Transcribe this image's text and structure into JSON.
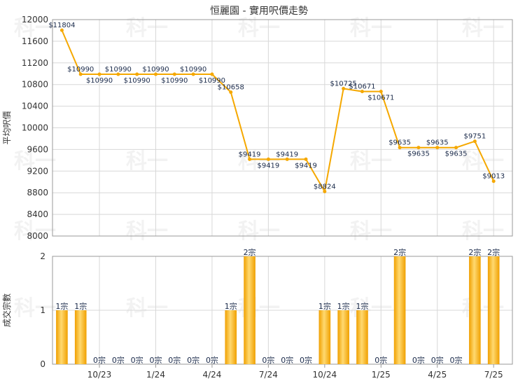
{
  "chart_data": [
    {
      "type": "line",
      "title": "恒麗園 - 實用呎價走勢",
      "ylabel": "平均呎價",
      "ylim": [
        8000,
        12000
      ],
      "yticks": [
        8000,
        8400,
        8800,
        9200,
        9600,
        10000,
        10400,
        10800,
        11200,
        11600,
        12000
      ],
      "grid": true,
      "color": "#f5a800",
      "points": [
        {
          "x": "2023-08",
          "y": 11804,
          "label": "$11804"
        },
        {
          "x": "2023-09",
          "y": 10990,
          "label": "$10990"
        },
        {
          "x": "2023-10",
          "y": 10990,
          "label": "$10990"
        },
        {
          "x": "2023-11",
          "y": 10990,
          "label": "$10990"
        },
        {
          "x": "2023-12",
          "y": 10990,
          "label": "$10990"
        },
        {
          "x": "2024-01",
          "y": 10990,
          "label": "$10990"
        },
        {
          "x": "2024-02",
          "y": 10990,
          "label": "$10990"
        },
        {
          "x": "2024-03",
          "y": 10990,
          "label": "$10990"
        },
        {
          "x": "2024-04",
          "y": 10990,
          "label": "$10990"
        },
        {
          "x": "2024-05",
          "y": 10658,
          "label": "$10658"
        },
        {
          "x": "2024-06",
          "y": 9419,
          "label": "$9419"
        },
        {
          "x": "2024-07",
          "y": 9419,
          "label": "$9419"
        },
        {
          "x": "2024-08",
          "y": 9419,
          "label": "$9419"
        },
        {
          "x": "2024-09",
          "y": 9419,
          "label": "$9419"
        },
        {
          "x": "2024-10",
          "y": 8824,
          "label": "$8824"
        },
        {
          "x": "2024-11",
          "y": 10725,
          "label": "$10725"
        },
        {
          "x": "2024-12",
          "y": 10671,
          "label": "$10671"
        },
        {
          "x": "2025-01",
          "y": 10671,
          "label": "$10671"
        },
        {
          "x": "2025-02",
          "y": 9635,
          "label": "$9635"
        },
        {
          "x": "2025-03",
          "y": 9635,
          "label": "$9635"
        },
        {
          "x": "2025-04",
          "y": 9635,
          "label": "$9635"
        },
        {
          "x": "2025-05",
          "y": 9635,
          "label": "$9635"
        },
        {
          "x": "2025-06",
          "y": 9751,
          "label": "$9751"
        },
        {
          "x": "2025-07",
          "y": 9013,
          "label": "$9013"
        }
      ]
    },
    {
      "type": "bar",
      "ylabel": "成交宗數",
      "ylim": [
        0,
        2
      ],
      "yticks": [
        0,
        1,
        2
      ],
      "grid": true,
      "color": "#f5a800",
      "categories": [
        "2023-08",
        "2023-09",
        "2023-10",
        "2023-11",
        "2023-12",
        "2024-01",
        "2024-02",
        "2024-03",
        "2024-04",
        "2024-05",
        "2024-06",
        "2024-07",
        "2024-08",
        "2024-09",
        "2024-10",
        "2024-11",
        "2024-12",
        "2025-01",
        "2025-02",
        "2025-03",
        "2025-04",
        "2025-05",
        "2025-06",
        "2025-07"
      ],
      "values": [
        1,
        1,
        0,
        0,
        0,
        0,
        0,
        0,
        0,
        1,
        2,
        0,
        0,
        0,
        1,
        1,
        1,
        0,
        2,
        0,
        0,
        0,
        2,
        2
      ],
      "value_labels": [
        "1宗",
        "1宗",
        "0宗",
        "0宗",
        "0宗",
        "0宗",
        "0宗",
        "0宗",
        "0宗",
        "1宗",
        "2宗",
        "0宗",
        "0宗",
        "0宗",
        "1宗",
        "1宗",
        "1宗",
        "0宗",
        "2宗",
        "0宗",
        "0宗",
        "0宗",
        "2宗",
        "2宗"
      ],
      "xtick_labels": [
        {
          "category": "2023-10",
          "label": "10/23"
        },
        {
          "category": "2024-01",
          "label": "1/24"
        },
        {
          "category": "2024-04",
          "label": "4/24"
        },
        {
          "category": "2024-07",
          "label": "7/24"
        },
        {
          "category": "2024-10",
          "label": "10/24"
        },
        {
          "category": "2025-01",
          "label": "1/25"
        },
        {
          "category": "2025-04",
          "label": "4/25"
        },
        {
          "category": "2025-07",
          "label": "7/25"
        }
      ]
    }
  ],
  "watermark": "科一"
}
